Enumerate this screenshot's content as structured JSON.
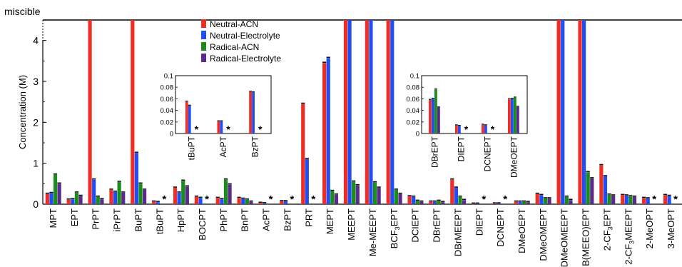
{
  "chart_data": [
    {
      "type": "bar",
      "ylabel": "Concentration (M)",
      "ylim": [
        0,
        4.5
      ],
      "yticks": [
        0,
        1,
        2,
        3,
        4
      ],
      "top_label": "miscible",
      "miscible_value": 4.5,
      "grid": false,
      "legend_position": "top-center",
      "categories": [
        "MPT",
        "EPT",
        "PrPT",
        "iPrPT",
        "BuPT",
        "tBuPT",
        "HpPT",
        "BOCPT",
        "PhPT",
        "BnPT",
        "AcPT",
        "BzPT",
        "PRT",
        "MEPT",
        "MEEPT",
        "Me-MEEPT",
        "BCF3EPT",
        "DCIEPT",
        "DBrEPT",
        "DBrMEEPT",
        "DIEPT",
        "DCNEPT",
        "DMeOEPT",
        "DMeOMEPT",
        "DMeOMEEPT",
        "B(MEEO)EPT",
        "2-CF3EPT",
        "2-CF3MEEPT",
        "2-MeOPT",
        "3-MeOPT"
      ],
      "category_labels": [
        {
          "main": "MPT"
        },
        {
          "main": "EPT"
        },
        {
          "main": "PrPT"
        },
        {
          "main": "iPrPT"
        },
        {
          "main": "BuPT"
        },
        {
          "main": "tBuPT"
        },
        {
          "main": "HpPT"
        },
        {
          "main": "BOCPT"
        },
        {
          "main": "PhPT"
        },
        {
          "main": "BnPT"
        },
        {
          "main": "AcPT"
        },
        {
          "main": "BzPT"
        },
        {
          "main": "PRT"
        },
        {
          "main": "MEPT"
        },
        {
          "main": "MEEPT"
        },
        {
          "main": "Me-MEEPT"
        },
        {
          "main": "BCF",
          "sub": "3",
          "rest": "EPT"
        },
        {
          "main": "DCIEPT"
        },
        {
          "main": "DBrEPT"
        },
        {
          "main": "DBrMEEPT"
        },
        {
          "main": "DIEPT"
        },
        {
          "main": "DCNEPT"
        },
        {
          "main": "DMeOEPT"
        },
        {
          "main": "DMeOMEPT"
        },
        {
          "main": "DMeOMEEPT"
        },
        {
          "main": "B(MEEO)EPT"
        },
        {
          "main": "2-CF",
          "sub": "3",
          "rest": "EPT"
        },
        {
          "main": "2-CF",
          "sub": "3",
          "rest": "MEEPT"
        },
        {
          "main": "2-MeOPT"
        },
        {
          "main": "3-MeOPT"
        }
      ],
      "series": [
        {
          "name": "Neutral-ACN",
          "color": "#ee2e24",
          "values": [
            0.25,
            0.11,
            4.5,
            0.35,
            4.5,
            0.06,
            0.4,
            0.18,
            0.15,
            0.15,
            0.03,
            0.07,
            2.45,
            3.45,
            4.5,
            4.5,
            4.5,
            0.19,
            0.06,
            0.6,
            0.01,
            0.015,
            0.06,
            0.25,
            4.5,
            4.5,
            0.95,
            0.22,
            0.15,
            0.22
          ]
        },
        {
          "name": "Neutral-Electrolyte",
          "color": "#1f4ef5",
          "values": [
            0.27,
            0.12,
            0.6,
            0.3,
            1.25,
            0.05,
            0.28,
            0.15,
            0.12,
            0.13,
            0.02,
            0.07,
            1.1,
            3.57,
            4.5,
            4.5,
            4.5,
            0.18,
            0.06,
            0.4,
            0.01,
            0.015,
            0.06,
            0.22,
            4.5,
            4.5,
            0.68,
            0.21,
            0.14,
            0.2
          ]
        },
        {
          "name": "Radical-ACN",
          "color": "#1a8c1a",
          "values": [
            0.72,
            0.28,
            0.18,
            0.54,
            0.5,
            null,
            0.57,
            null,
            0.6,
            0.11,
            null,
            null,
            null,
            0.32,
            0.55,
            0.53,
            0.35,
            0.08,
            0.08,
            0.18,
            null,
            null,
            0.06,
            0.14,
            0.18,
            0.78,
            0.23,
            0.19,
            null,
            null
          ]
        },
        {
          "name": "Radical-Electrolyte",
          "color": "#5b2a8c",
          "values": [
            0.5,
            0.2,
            0.12,
            0.28,
            0.35,
            null,
            0.43,
            null,
            0.48,
            0.06,
            null,
            null,
            null,
            0.23,
            0.46,
            0.4,
            0.25,
            0.06,
            0.05,
            0.1,
            null,
            null,
            0.05,
            0.14,
            0.1,
            0.63,
            0.21,
            0.18,
            null,
            null
          ]
        }
      ],
      "annotations": {
        "asterisk_text": "*",
        "asterisk_categories": [
          "tBuPT",
          "BOCPT",
          "AcPT",
          "BzPT",
          "PRT",
          "DIEPT",
          "DCNEPT",
          "2-MeOPT",
          "3-MeOPT"
        ]
      }
    },
    {
      "type": "bar",
      "role": "inset-left",
      "ylim": [
        0,
        0.1
      ],
      "yticks": [
        "0",
        "0.02",
        "0.04",
        "0.06",
        "0.08",
        "0.1"
      ],
      "categories": [
        "tBuPT",
        "AcPT",
        "BzPT"
      ],
      "series": [
        {
          "name": "Neutral-ACN",
          "values": [
            0.055,
            0.021,
            0.072
          ]
        },
        {
          "name": "Neutral-Electrolyte",
          "values": [
            0.048,
            0.021,
            0.071
          ]
        },
        {
          "name": "Radical-ACN",
          "values": [
            null,
            null,
            null
          ]
        },
        {
          "name": "Radical-Electrolyte",
          "values": [
            null,
            null,
            null
          ]
        }
      ],
      "asterisk_text": "*"
    },
    {
      "type": "bar",
      "role": "inset-right",
      "ylim": [
        0,
        0.1
      ],
      "yticks": [
        "0",
        "0.02",
        "0.04",
        "0.06",
        "0.08",
        "0.1"
      ],
      "categories": [
        "DBrEPT",
        "DIEPT",
        "DCNEPT",
        "DMeOEPT"
      ],
      "series": [
        {
          "name": "Neutral-ACN",
          "values": [
            0.058,
            0.014,
            0.015,
            0.059
          ]
        },
        {
          "name": "Neutral-Electrolyte",
          "values": [
            0.06,
            0.013,
            0.014,
            0.06
          ]
        },
        {
          "name": "Radical-ACN",
          "values": [
            0.076,
            null,
            null,
            0.062
          ]
        },
        {
          "name": "Radical-Electrolyte",
          "values": [
            0.045,
            null,
            null,
            0.046
          ]
        }
      ],
      "asterisk_text": "*"
    }
  ]
}
